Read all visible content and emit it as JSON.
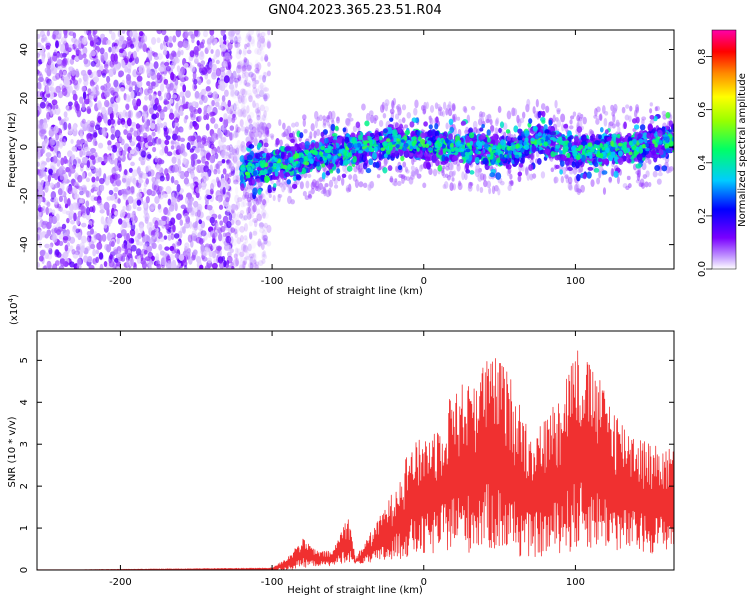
{
  "title": "GN04.2023.365.23.51.R04",
  "chart_data": [
    {
      "type": "heatmap",
      "xlabel": "Height of straight line (km)",
      "ylabel": "Frequency (Hz)",
      "xlim": [
        -255,
        165
      ],
      "ylim": [
        -50,
        48
      ],
      "x_ticks": [
        -200,
        -100,
        0,
        100
      ],
      "y_ticks": [
        -40,
        -20,
        0,
        20,
        40
      ],
      "grid": false,
      "colorbar": {
        "label": "Normalized spectral amplitude",
        "range": [
          0,
          0.9
        ],
        "ticks": [
          0.0,
          0.2,
          0.4,
          0.6,
          0.8
        ]
      },
      "regions": [
        {
          "x_range": [
            -255,
            -110
          ],
          "y_range": [
            -50,
            48
          ],
          "pattern": "broadband noise",
          "amplitude": [
            0.02,
            0.15
          ]
        },
        {
          "x_range": [
            -120,
            165
          ],
          "center_y": [
            [
              -120,
              -10
            ],
            [
              -60,
              -2
            ],
            [
              -20,
              2
            ],
            [
              20,
              0
            ],
            [
              60,
              -2
            ],
            [
              75,
              4
            ],
            [
              100,
              -2
            ],
            [
              140,
              0
            ],
            [
              165,
              3
            ]
          ],
          "pattern": "narrow band",
          "amplitude": [
            0.1,
            0.5
          ]
        }
      ]
    },
    {
      "type": "line",
      "xlabel": "Height of straight line (km)",
      "ylabel": "SNR (10 * v/v)",
      "y_multiplier": "(x10",
      "y_multiplier_exp": "4",
      "y_multiplier_close": ")",
      "xlim": [
        -255,
        165
      ],
      "ylim": [
        0,
        5.7
      ],
      "x_ticks": [
        -200,
        -100,
        0,
        100
      ],
      "y_ticks": [
        0,
        1,
        2,
        3,
        4,
        5
      ],
      "grid": false,
      "color": "#f03030",
      "envelope": [
        {
          "x": -255,
          "low": 0,
          "high": 0
        },
        {
          "x": -100,
          "low": 0,
          "high": 0.05
        },
        {
          "x": -90,
          "low": 0,
          "high": 0.3
        },
        {
          "x": -80,
          "low": 0.05,
          "high": 0.75
        },
        {
          "x": -70,
          "low": 0.1,
          "high": 0.45
        },
        {
          "x": -60,
          "low": 0.1,
          "high": 0.45
        },
        {
          "x": -50,
          "low": 0.2,
          "high": 1.35
        },
        {
          "x": -45,
          "low": 0.15,
          "high": 0.3
        },
        {
          "x": -30,
          "low": 0.15,
          "high": 1.2
        },
        {
          "x": -20,
          "low": 0.2,
          "high": 1.9
        },
        {
          "x": -10,
          "low": 0.3,
          "high": 2.9
        },
        {
          "x": 0,
          "low": 0.3,
          "high": 3.2
        },
        {
          "x": 10,
          "low": 0.4,
          "high": 3.5
        },
        {
          "x": 20,
          "low": 0.5,
          "high": 4.4
        },
        {
          "x": 30,
          "low": 0.4,
          "high": 4.5
        },
        {
          "x": 40,
          "low": 0.5,
          "high": 5.0
        },
        {
          "x": 50,
          "low": 0.4,
          "high": 5.1
        },
        {
          "x": 60,
          "low": 0.3,
          "high": 4.4
        },
        {
          "x": 70,
          "low": 0.3,
          "high": 3.3
        },
        {
          "x": 80,
          "low": 0.3,
          "high": 3.6
        },
        {
          "x": 90,
          "low": 0.4,
          "high": 4.3
        },
        {
          "x": 100,
          "low": 0.4,
          "high": 5.4
        },
        {
          "x": 110,
          "low": 0.5,
          "high": 4.9
        },
        {
          "x": 120,
          "low": 0.5,
          "high": 4.3
        },
        {
          "x": 130,
          "low": 0.4,
          "high": 3.6
        },
        {
          "x": 140,
          "low": 0.4,
          "high": 3.3
        },
        {
          "x": 150,
          "low": 0.4,
          "high": 3.0
        },
        {
          "x": 165,
          "low": 0.5,
          "high": 2.9
        }
      ]
    }
  ]
}
